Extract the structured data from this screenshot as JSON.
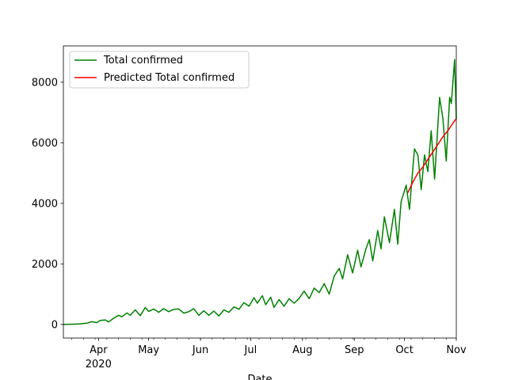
{
  "chart_data": {
    "type": "line",
    "title": "",
    "xlabel": "Date",
    "ylabel": "",
    "grid": false,
    "legend_placement": "top-left",
    "x_range": [
      "2020-03-11",
      "2020-11-01"
    ],
    "ylim": [
      -450,
      9200
    ],
    "y_ticks": [
      0,
      2000,
      4000,
      6000,
      8000
    ],
    "x_ticks": [
      {
        "date": "2020-04-01",
        "label": "Apr",
        "sublabel": "2020"
      },
      {
        "date": "2020-05-01",
        "label": "May"
      },
      {
        "date": "2020-06-01",
        "label": "Jun"
      },
      {
        "date": "2020-07-01",
        "label": "Jul"
      },
      {
        "date": "2020-08-01",
        "label": "Aug"
      },
      {
        "date": "2020-09-01",
        "label": "Sep"
      },
      {
        "date": "2020-10-01",
        "label": "Oct"
      },
      {
        "date": "2020-11-01",
        "label": "Nov"
      }
    ],
    "series": [
      {
        "name": "Total confirmed",
        "color": "#008000",
        "points": [
          [
            "2020-03-11",
            0
          ],
          [
            "2020-03-15",
            5
          ],
          [
            "2020-03-20",
            15
          ],
          [
            "2020-03-25",
            40
          ],
          [
            "2020-03-28",
            90
          ],
          [
            "2020-03-31",
            60
          ],
          [
            "2020-04-02",
            130
          ],
          [
            "2020-04-05",
            150
          ],
          [
            "2020-04-07",
            80
          ],
          [
            "2020-04-10",
            200
          ],
          [
            "2020-04-13",
            300
          ],
          [
            "2020-04-15",
            250
          ],
          [
            "2020-04-18",
            380
          ],
          [
            "2020-04-20",
            300
          ],
          [
            "2020-04-23",
            480
          ],
          [
            "2020-04-26",
            290
          ],
          [
            "2020-04-29",
            560
          ],
          [
            "2020-05-01",
            430
          ],
          [
            "2020-05-04",
            510
          ],
          [
            "2020-05-07",
            400
          ],
          [
            "2020-05-10",
            520
          ],
          [
            "2020-05-13",
            420
          ],
          [
            "2020-05-16",
            500
          ],
          [
            "2020-05-19",
            510
          ],
          [
            "2020-05-22",
            370
          ],
          [
            "2020-05-25",
            420
          ],
          [
            "2020-05-28",
            520
          ],
          [
            "2020-05-31",
            300
          ],
          [
            "2020-06-03",
            450
          ],
          [
            "2020-06-06",
            300
          ],
          [
            "2020-06-09",
            440
          ],
          [
            "2020-06-12",
            280
          ],
          [
            "2020-06-15",
            480
          ],
          [
            "2020-06-18",
            400
          ],
          [
            "2020-06-21",
            580
          ],
          [
            "2020-06-24",
            500
          ],
          [
            "2020-06-27",
            720
          ],
          [
            "2020-06-30",
            600
          ],
          [
            "2020-07-03",
            880
          ],
          [
            "2020-07-05",
            700
          ],
          [
            "2020-07-08",
            950
          ],
          [
            "2020-07-10",
            650
          ],
          [
            "2020-07-13",
            900
          ],
          [
            "2020-07-15",
            560
          ],
          [
            "2020-07-18",
            820
          ],
          [
            "2020-07-21",
            600
          ],
          [
            "2020-07-24",
            850
          ],
          [
            "2020-07-27",
            700
          ],
          [
            "2020-07-30",
            860
          ],
          [
            "2020-08-02",
            1100
          ],
          [
            "2020-08-05",
            850
          ],
          [
            "2020-08-08",
            1200
          ],
          [
            "2020-08-11",
            1050
          ],
          [
            "2020-08-14",
            1350
          ],
          [
            "2020-08-17",
            1000
          ],
          [
            "2020-08-20",
            1600
          ],
          [
            "2020-08-23",
            1850
          ],
          [
            "2020-08-25",
            1500
          ],
          [
            "2020-08-28",
            2300
          ],
          [
            "2020-08-31",
            1700
          ],
          [
            "2020-09-03",
            2450
          ],
          [
            "2020-09-05",
            1900
          ],
          [
            "2020-09-08",
            2500
          ],
          [
            "2020-09-10",
            2800
          ],
          [
            "2020-09-12",
            2100
          ],
          [
            "2020-09-15",
            3100
          ],
          [
            "2020-09-17",
            2500
          ],
          [
            "2020-09-19",
            3550
          ],
          [
            "2020-09-22",
            2700
          ],
          [
            "2020-09-25",
            3800
          ],
          [
            "2020-09-27",
            2650
          ],
          [
            "2020-09-29",
            4050
          ],
          [
            "2020-10-02",
            4600
          ],
          [
            "2020-10-04",
            3800
          ],
          [
            "2020-10-07",
            5800
          ],
          [
            "2020-10-09",
            5600
          ],
          [
            "2020-10-11",
            4450
          ],
          [
            "2020-10-13",
            5600
          ],
          [
            "2020-10-15",
            5050
          ],
          [
            "2020-10-17",
            6400
          ],
          [
            "2020-10-19",
            4800
          ],
          [
            "2020-10-22",
            7500
          ],
          [
            "2020-10-24",
            6800
          ],
          [
            "2020-10-26",
            5400
          ],
          [
            "2020-10-28",
            7500
          ],
          [
            "2020-10-29",
            7300
          ],
          [
            "2020-10-31",
            8750
          ],
          [
            "2020-11-01",
            6800
          ]
        ]
      },
      {
        "name": "Predicted Total confirmed",
        "color": "#ff0000",
        "points": [
          [
            "2020-10-03",
            4350
          ],
          [
            "2020-10-06",
            4700
          ],
          [
            "2020-10-09",
            5000
          ],
          [
            "2020-10-12",
            5200
          ],
          [
            "2020-10-15",
            5450
          ],
          [
            "2020-10-18",
            5700
          ],
          [
            "2020-10-21",
            5950
          ],
          [
            "2020-10-24",
            6200
          ],
          [
            "2020-10-27",
            6400
          ],
          [
            "2020-10-30",
            6650
          ],
          [
            "2020-11-01",
            6800
          ]
        ]
      }
    ]
  }
}
